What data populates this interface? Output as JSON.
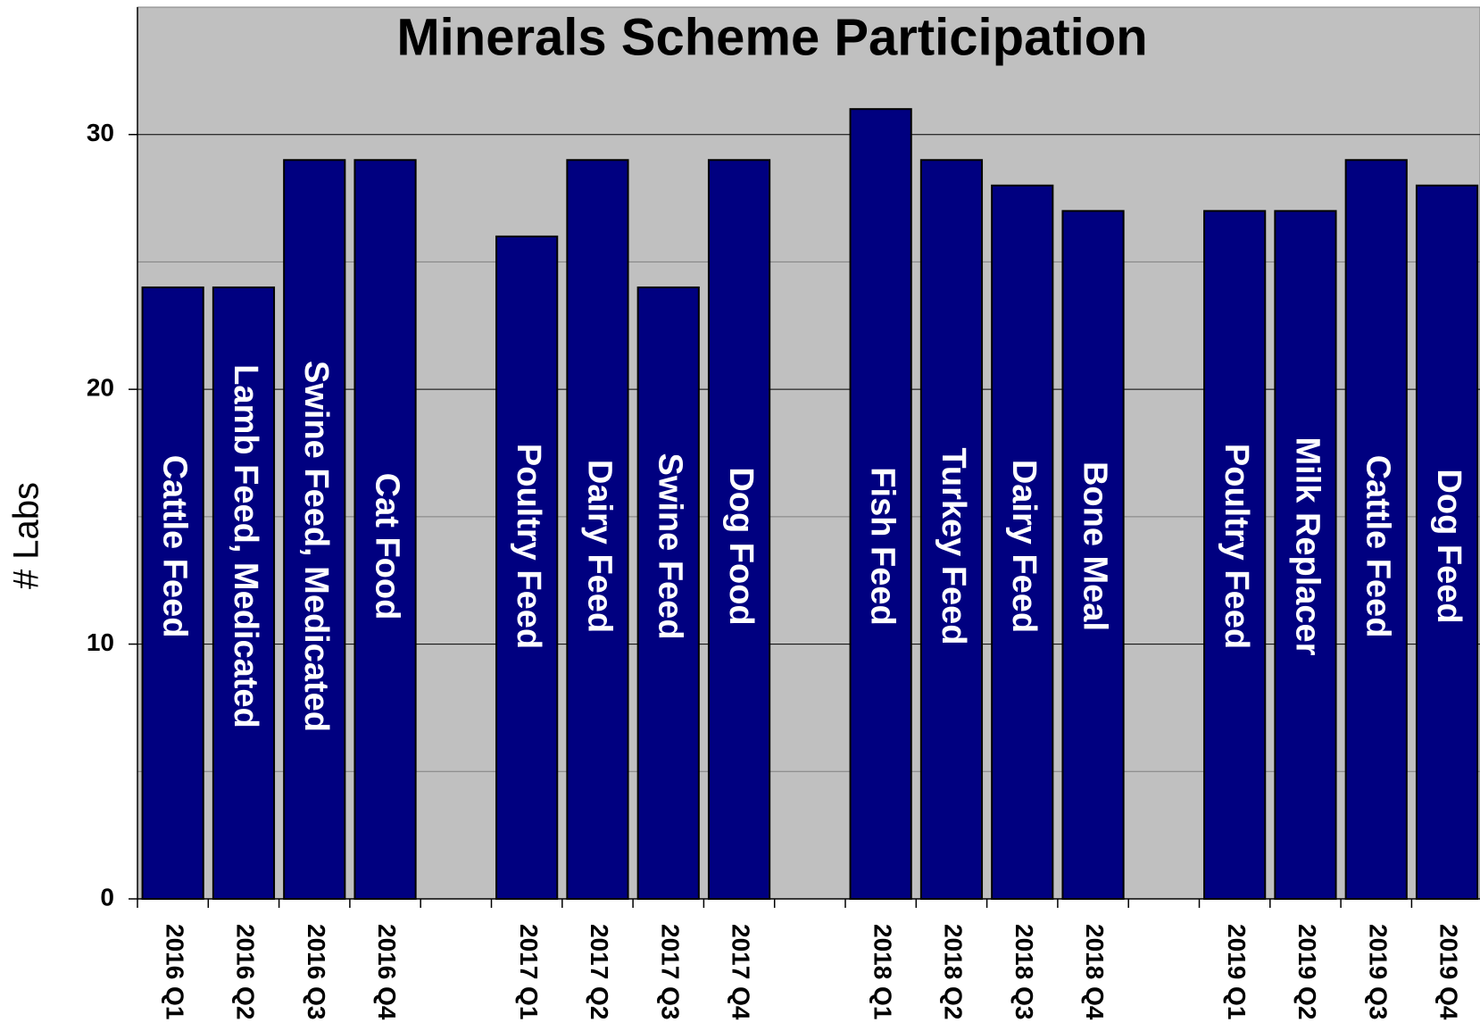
{
  "chart_data": {
    "type": "bar",
    "title": "Minerals Scheme Participation",
    "y_label": "# Labs",
    "categories": [
      "2016 Q1",
      "2016 Q2",
      "2016 Q3",
      "2016 Q4",
      null,
      "2017 Q1",
      "2017 Q2",
      "2017 Q3",
      "2017 Q4",
      null,
      "2018 Q1",
      "2018 Q2",
      "2018 Q3",
      "2018 Q4",
      null,
      "2019 Q1",
      "2019 Q2",
      "2019 Q3",
      "2019 Q4"
    ],
    "values": [
      24,
      24,
      29,
      29,
      null,
      26,
      29,
      24,
      29,
      null,
      31,
      29,
      28,
      27,
      null,
      27,
      27,
      29,
      28
    ],
    "bar_labels": [
      "Cattle Feed",
      "Lamb Feed, Medicated",
      "Swine Feed, Medicated",
      "Cat Food",
      null,
      "Poultry Feed",
      "Dairy Feed",
      "Swine Feed",
      "Dog Food",
      null,
      "Fish Feed",
      "Turkey Feed",
      "Dairy Feed",
      "Bone Meal",
      null,
      "Poultry Feed",
      "Milk Replacer",
      "Cattle Feed",
      "Dog Feed"
    ],
    "color": "#000080",
    "ylim": [
      0,
      35
    ],
    "yticks": [
      0,
      10,
      20,
      30
    ],
    "minor_grid": [
      5,
      15,
      25
    ],
    "grid": true
  }
}
